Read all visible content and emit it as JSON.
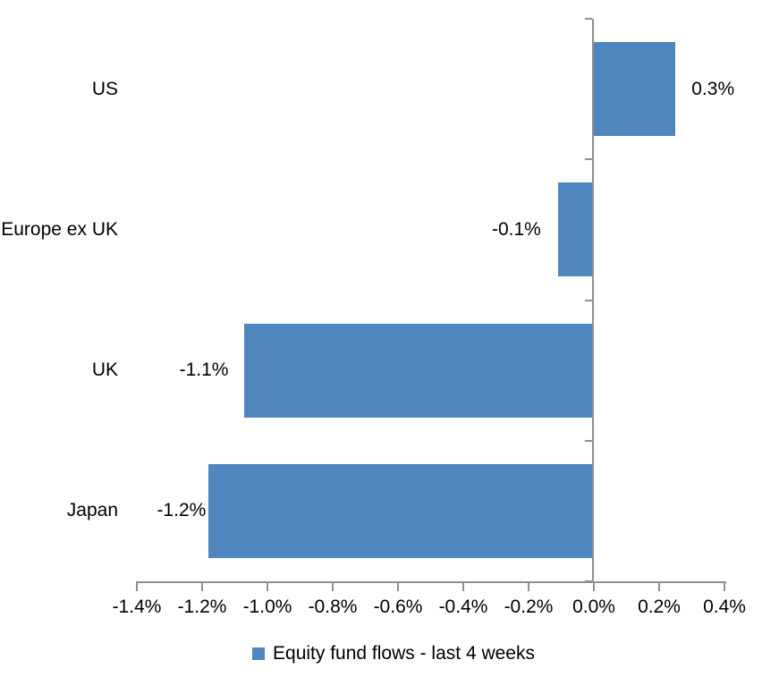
{
  "chart_data": {
    "type": "bar",
    "orientation": "horizontal",
    "title": "",
    "categories": [
      "US",
      "Europe ex UK",
      "UK",
      "Japan"
    ],
    "values": [
      0.3,
      -0.1,
      -1.1,
      -1.2
    ],
    "data_labels": [
      "0.3%",
      "-0.1%",
      "-1.1%",
      "-1.2%"
    ],
    "bar_values_measured": [
      0.25,
      -0.11,
      -1.07,
      -1.18
    ],
    "xlabel": "",
    "ylabel": "",
    "xlim": [
      -1.4,
      0.4
    ],
    "x_ticks": [
      -1.4,
      -1.2,
      -1.0,
      -0.8,
      -0.6,
      -0.4,
      -0.2,
      0.0,
      0.2,
      0.4
    ],
    "x_tick_labels": [
      "-1.4%",
      "-1.2%",
      "-1.0%",
      "-0.8%",
      "-0.6%",
      "-0.4%",
      "-0.2%",
      "0.0%",
      "0.2%",
      "0.4%"
    ],
    "grid": false,
    "legend": [
      "Equity fund flows - last 4 weeks"
    ],
    "legend_position": "bottom",
    "bar_color": "#4E86BD",
    "axis_color": "#8F8F8F",
    "label_color": "#000000",
    "background": "#FFFFFF"
  }
}
